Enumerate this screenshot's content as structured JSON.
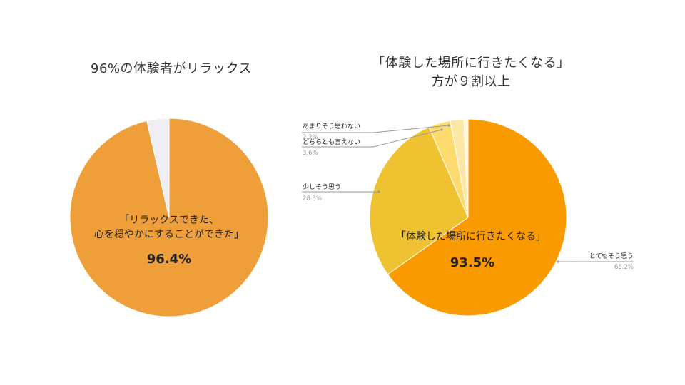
{
  "titles": {
    "left": "96%の体験者がリラックス",
    "right_line1": "「体験した場所に行きたくなる」",
    "right_line2": "方が９割以上"
  },
  "chart_data": [
    {
      "type": "pie",
      "title": "96%の体験者がリラックス",
      "slices": [
        {
          "label": "「リラックスできた、心を穏やかにすることができた」",
          "value": 96.4,
          "color": "#EE9F3A"
        },
        {
          "label": "",
          "value": 3.6,
          "color": "#EFEEF2"
        }
      ],
      "annotation": {
        "line1": "「リラックスできた、",
        "line2": "心を穏やかにすることができた」",
        "value_label": "96.4%"
      }
    },
    {
      "type": "pie",
      "title": "「体験した場所に行きたくなる」方が９割以上",
      "slices": [
        {
          "label": "とてもそう思う",
          "value": 65.2,
          "pct_label": "65.2%",
          "color": "#F99A00"
        },
        {
          "label": "少しそう思う",
          "value": 28.3,
          "pct_label": "28.3%",
          "color": "#EFC232"
        },
        {
          "label": "どちらとも言えない",
          "value": 3.6,
          "pct_label": "3.6%",
          "color": "#FDDB6E"
        },
        {
          "label": "あまりそう思わない",
          "value": 2.2,
          "pct_label": "2.2%",
          "color": "#FCE7A5"
        },
        {
          "label": "",
          "value": 0.7,
          "color": "#FFF6DE"
        }
      ],
      "annotation": {
        "line1": "「体験した場所に行きたくなる」",
        "value_label": "93.5%"
      }
    }
  ]
}
